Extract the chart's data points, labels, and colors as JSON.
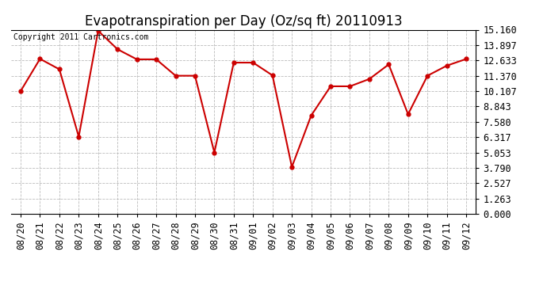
{
  "title": "Evapotranspiration per Day (Oz/sq ft) 20110913",
  "copyright_text": "Copyright 2011 Cartronics.com",
  "x_labels": [
    "08/20",
    "08/21",
    "08/22",
    "08/23",
    "08/24",
    "08/25",
    "08/26",
    "08/27",
    "08/28",
    "08/29",
    "08/30",
    "08/31",
    "09/01",
    "09/02",
    "09/03",
    "09/04",
    "09/05",
    "09/06",
    "09/07",
    "09/08",
    "09/09",
    "09/10",
    "09/11",
    "09/12"
  ],
  "y_values": [
    10.107,
    12.76,
    11.9,
    6.35,
    15.07,
    13.55,
    12.72,
    12.72,
    11.37,
    11.37,
    5.05,
    12.45,
    12.45,
    11.4,
    3.86,
    8.1,
    10.5,
    10.5,
    11.1,
    12.3,
    8.2,
    11.37,
    12.2,
    12.75
  ],
  "y_ticks": [
    0.0,
    1.263,
    2.527,
    3.79,
    5.053,
    6.317,
    7.58,
    8.843,
    10.107,
    11.37,
    12.633,
    13.897,
    15.16
  ],
  "y_min": 0.0,
  "y_max": 15.16,
  "line_color": "#cc0000",
  "marker_color": "#cc0000",
  "bg_color": "#ffffff",
  "grid_color": "#bbbbbb",
  "title_fontsize": 12,
  "copyright_fontsize": 7,
  "tick_fontsize": 8.5
}
